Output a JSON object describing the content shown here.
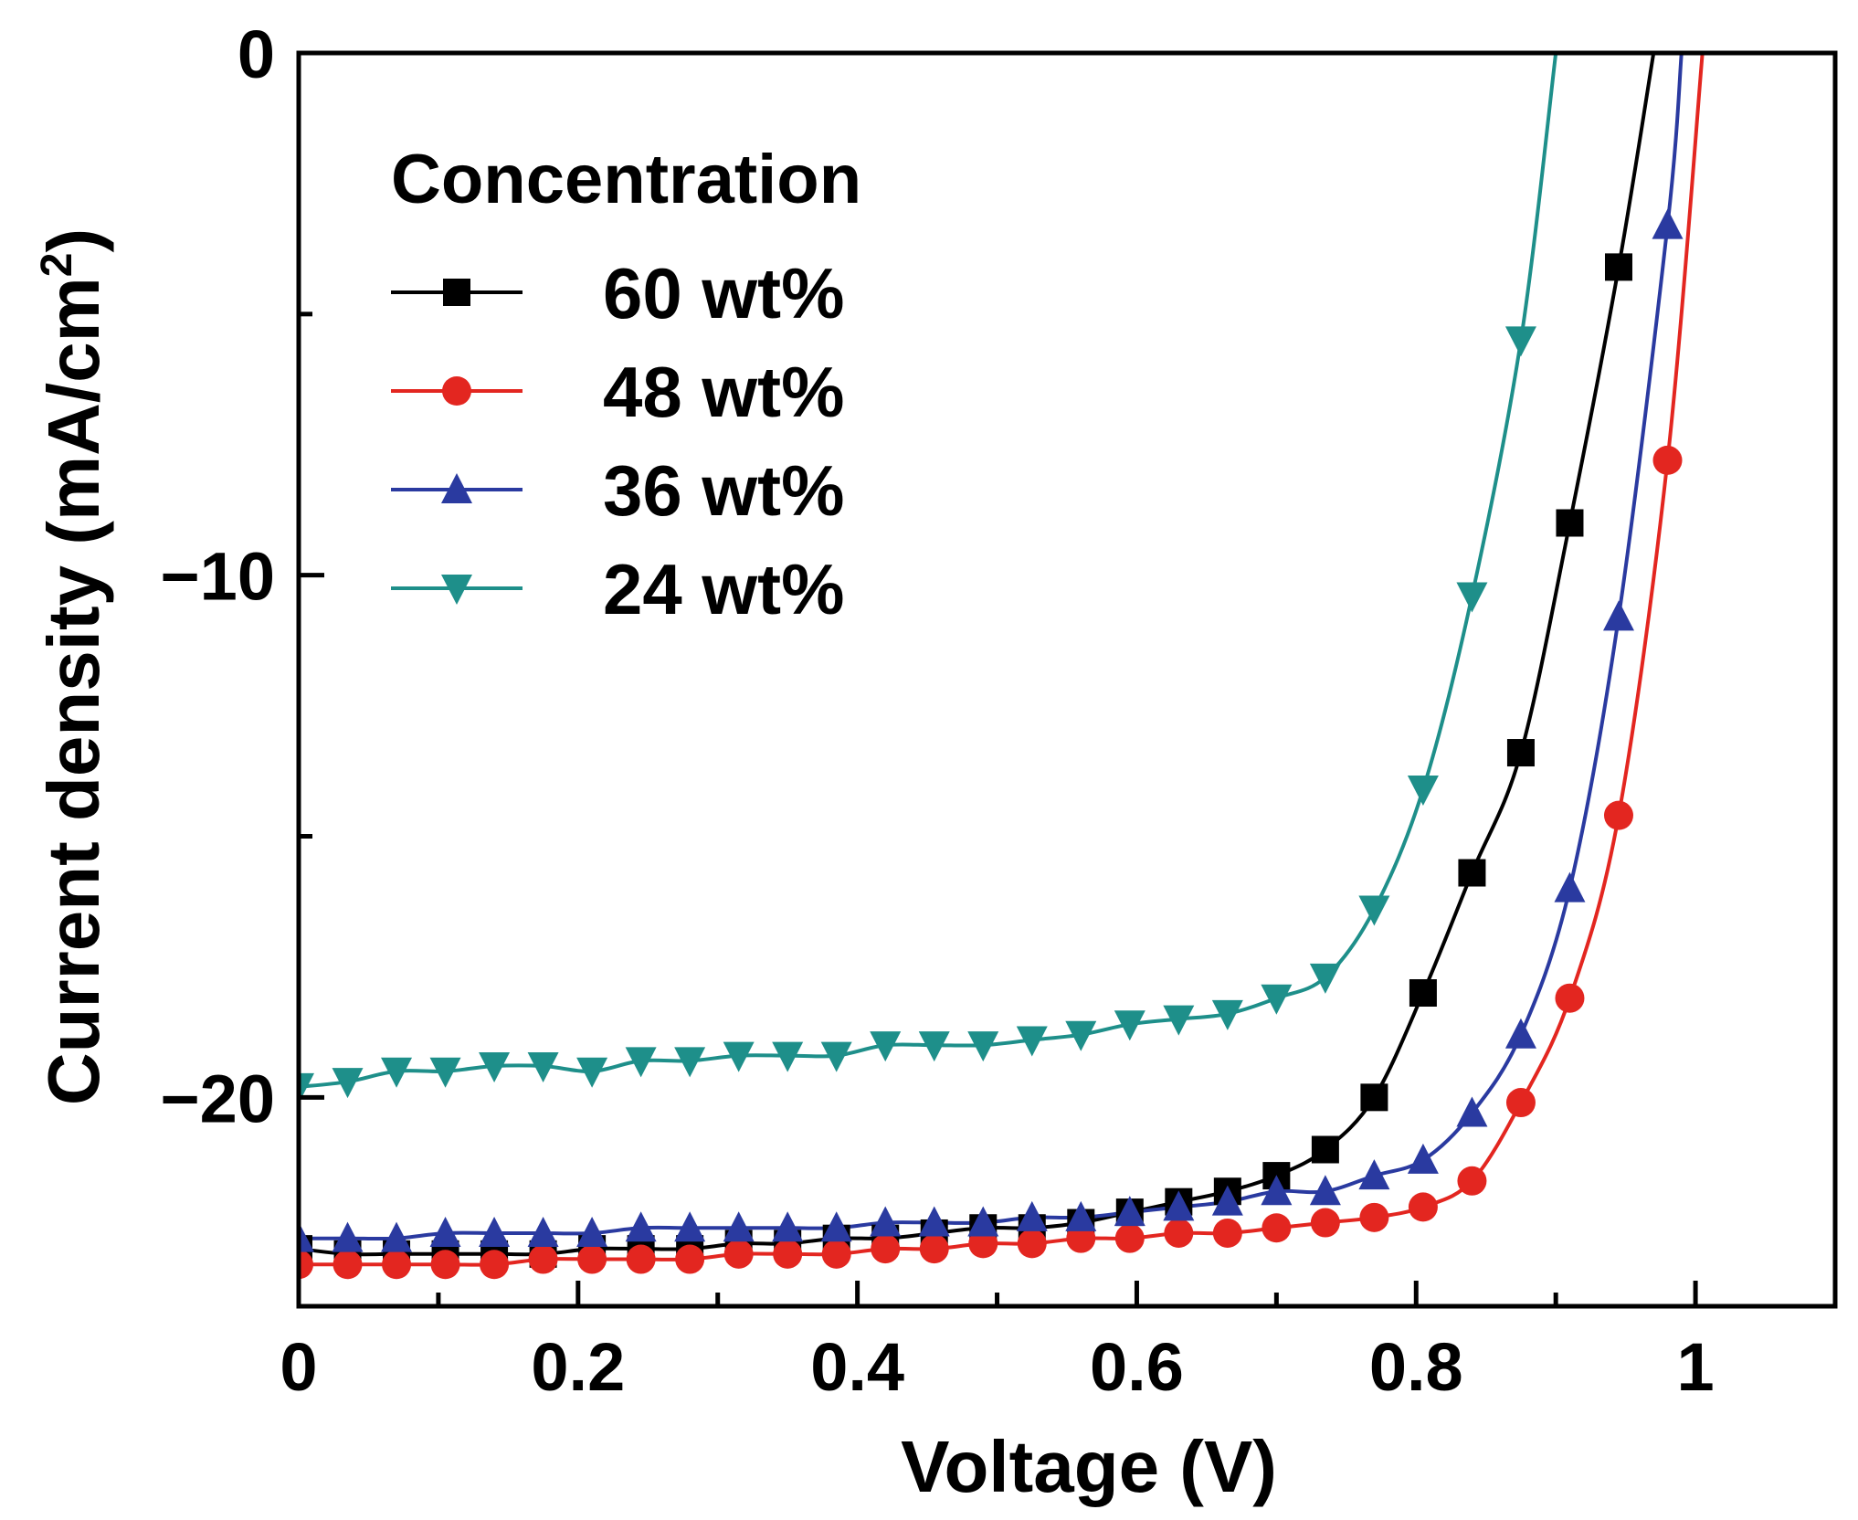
{
  "chart_data": {
    "type": "line",
    "title": "",
    "xlabel": "Voltage (V)",
    "ylabel": "Current density (mA/cm",
    "ylabel_superscript": "2",
    "ylabel_close": ")",
    "xlim": [
      0,
      1.1
    ],
    "ylim": [
      -24,
      0
    ],
    "xticks": [
      0,
      0.2,
      0.4,
      0.6,
      0.8,
      1.0
    ],
    "xtick_labels": [
      "0",
      "0.2",
      "0.4",
      "0.6",
      "0.8",
      "1"
    ],
    "xticks_minor": [
      0.1,
      0.3,
      0.5,
      0.7,
      0.9
    ],
    "yticks": [
      0,
      -10,
      -20
    ],
    "ytick_labels": [
      "0",
      "−10",
      "−20"
    ],
    "yticks_minor": [
      -5,
      -15
    ],
    "legend_title": "Concentration",
    "legend_position": "upper-left",
    "marker_x": [
      0,
      0.035,
      0.07,
      0.105,
      0.14,
      0.175,
      0.21,
      0.245,
      0.28,
      0.315,
      0.35,
      0.385,
      0.42,
      0.455,
      0.49,
      0.525,
      0.56,
      0.595,
      0.63,
      0.665,
      0.7,
      0.735,
      0.77,
      0.805,
      0.84,
      0.875,
      0.91,
      0.945,
      0.98
    ],
    "series": [
      {
        "name": "60 wt%",
        "color": "#000000",
        "marker": "square",
        "values": [
          -22.9,
          -23.0,
          -23.0,
          -23.0,
          -23.0,
          -23.0,
          -22.9,
          -22.9,
          -22.9,
          -22.8,
          -22.8,
          -22.7,
          -22.7,
          -22.6,
          -22.5,
          -22.5,
          -22.4,
          -22.2,
          -22.0,
          -21.8,
          -21.5,
          -21.0,
          -20.0,
          -18.0,
          -15.7,
          -13.4,
          -9.0,
          -4.1,
          null
        ],
        "curve_x": [
          0,
          0.035,
          0.07,
          0.105,
          0.14,
          0.175,
          0.21,
          0.245,
          0.28,
          0.315,
          0.35,
          0.385,
          0.42,
          0.455,
          0.49,
          0.525,
          0.56,
          0.595,
          0.63,
          0.665,
          0.7,
          0.735,
          0.77,
          0.805,
          0.84,
          0.875,
          0.91,
          0.945,
          0.97
        ],
        "curve_y": [
          -22.9,
          -23.0,
          -23.0,
          -23.0,
          -23.0,
          -23.0,
          -22.9,
          -22.9,
          -22.9,
          -22.8,
          -22.8,
          -22.7,
          -22.7,
          -22.6,
          -22.5,
          -22.5,
          -22.4,
          -22.2,
          -22.0,
          -21.8,
          -21.5,
          -21.0,
          -20.0,
          -18.0,
          -15.7,
          -13.4,
          -9.0,
          -4.1,
          0
        ]
      },
      {
        "name": "48 wt%",
        "color": "#e32620",
        "marker": "circle",
        "values": [
          -23.2,
          -23.2,
          -23.2,
          -23.2,
          -23.2,
          -23.1,
          -23.1,
          -23.1,
          -23.1,
          -23.0,
          -23.0,
          -23.0,
          -22.9,
          -22.9,
          -22.8,
          -22.8,
          -22.7,
          -22.7,
          -22.6,
          -22.6,
          -22.5,
          -22.4,
          -22.3,
          -22.1,
          -21.6,
          -20.1,
          -18.1,
          -14.6,
          -7.8
        ],
        "curve_x": [
          0,
          0.035,
          0.07,
          0.105,
          0.14,
          0.175,
          0.21,
          0.245,
          0.28,
          0.315,
          0.35,
          0.385,
          0.42,
          0.455,
          0.49,
          0.525,
          0.56,
          0.595,
          0.63,
          0.665,
          0.7,
          0.735,
          0.77,
          0.805,
          0.84,
          0.875,
          0.91,
          0.945,
          0.98,
          1.005
        ],
        "curve_y": [
          -23.2,
          -23.2,
          -23.2,
          -23.2,
          -23.2,
          -23.1,
          -23.1,
          -23.1,
          -23.1,
          -23.0,
          -23.0,
          -23.0,
          -22.9,
          -22.9,
          -22.8,
          -22.8,
          -22.7,
          -22.7,
          -22.6,
          -22.6,
          -22.5,
          -22.4,
          -22.3,
          -22.1,
          -21.6,
          -20.1,
          -18.1,
          -14.6,
          -7.8,
          0
        ]
      },
      {
        "name": "36 wt%",
        "color": "#2a3aa0",
        "marker": "triangle-up",
        "values": [
          -22.7,
          -22.7,
          -22.7,
          -22.6,
          -22.6,
          -22.6,
          -22.6,
          -22.5,
          -22.5,
          -22.5,
          -22.5,
          -22.5,
          -22.4,
          -22.4,
          -22.4,
          -22.3,
          -22.3,
          -22.2,
          -22.1,
          -22.0,
          -21.8,
          -21.8,
          -21.5,
          -21.2,
          -20.3,
          -18.8,
          -16.0,
          -10.8,
          -3.3
        ],
        "curve_x": [
          0,
          0.035,
          0.07,
          0.105,
          0.14,
          0.175,
          0.21,
          0.245,
          0.28,
          0.315,
          0.35,
          0.385,
          0.42,
          0.455,
          0.49,
          0.525,
          0.56,
          0.595,
          0.63,
          0.665,
          0.7,
          0.735,
          0.77,
          0.805,
          0.84,
          0.875,
          0.91,
          0.945,
          0.98,
          0.99
        ],
        "curve_y": [
          -22.7,
          -22.7,
          -22.7,
          -22.6,
          -22.6,
          -22.6,
          -22.6,
          -22.5,
          -22.5,
          -22.5,
          -22.5,
          -22.5,
          -22.4,
          -22.4,
          -22.4,
          -22.3,
          -22.3,
          -22.2,
          -22.1,
          -22.0,
          -21.8,
          -21.8,
          -21.5,
          -21.2,
          -20.3,
          -18.8,
          -16.0,
          -10.8,
          -3.3,
          0
        ]
      },
      {
        "name": "24 wt%",
        "color": "#1e8f8a",
        "marker": "triangle-down",
        "values": [
          -19.8,
          -19.7,
          -19.5,
          -19.5,
          -19.4,
          -19.4,
          -19.5,
          -19.3,
          -19.3,
          -19.2,
          -19.2,
          -19.2,
          -19.0,
          -19.0,
          -19.0,
          -18.9,
          -18.8,
          -18.6,
          -18.5,
          -18.4,
          -18.1,
          -17.7,
          -16.4,
          -14.1,
          -10.4,
          -5.5,
          null,
          null,
          null
        ],
        "curve_x": [
          0,
          0.035,
          0.07,
          0.105,
          0.14,
          0.175,
          0.21,
          0.245,
          0.28,
          0.315,
          0.35,
          0.385,
          0.42,
          0.455,
          0.49,
          0.525,
          0.56,
          0.595,
          0.63,
          0.665,
          0.7,
          0.735,
          0.77,
          0.805,
          0.84,
          0.875,
          0.9
        ],
        "curve_y": [
          -19.8,
          -19.7,
          -19.5,
          -19.5,
          -19.4,
          -19.4,
          -19.5,
          -19.3,
          -19.3,
          -19.2,
          -19.2,
          -19.2,
          -19.0,
          -19.0,
          -19.0,
          -18.9,
          -18.8,
          -18.6,
          -18.5,
          -18.4,
          -18.1,
          -17.7,
          -16.4,
          -14.1,
          -10.4,
          -5.5,
          0
        ]
      }
    ]
  }
}
